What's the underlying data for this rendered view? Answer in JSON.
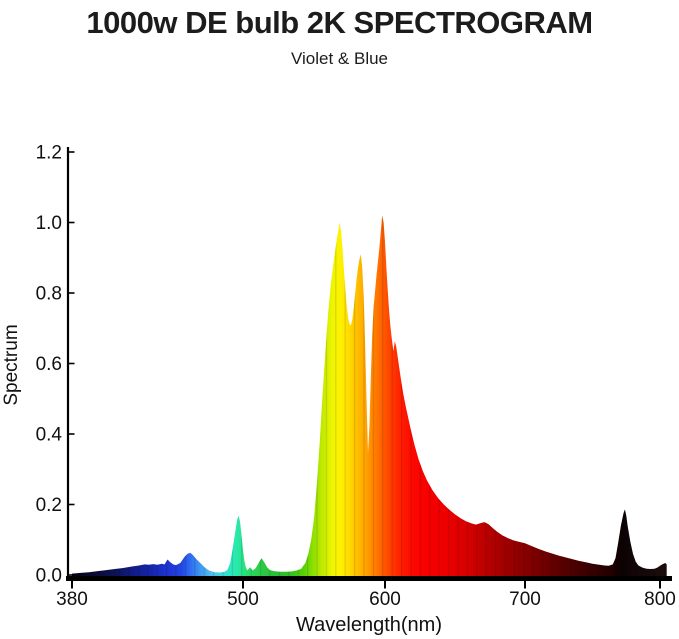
{
  "header": {
    "title": "1000w DE bulb 2K SPECTROGRAM",
    "subtitle": "Violet & Blue"
  },
  "chart_data": {
    "type": "area",
    "title": "1000w DE bulb 2K SPECTROGRAM",
    "subtitle": "Violet & Blue",
    "xlabel": "Wavelength(nm)",
    "ylabel": "Spectrum",
    "xlim": [
      380,
      805
    ],
    "ylim": [
      0,
      1.2
    ],
    "grid": false,
    "legend": "none",
    "axis_color": "#000000",
    "tick_label_color": "#111111",
    "x_tick_values": [
      380,
      500,
      600,
      700,
      800
    ],
    "x_tick_labels": [
      "380",
      "500",
      "600",
      "700",
      "800"
    ],
    "y_tick_values": [
      0.0,
      0.2,
      0.4,
      0.6,
      0.8,
      1.0,
      1.2
    ],
    "y_tick_labels": [
      "0.0",
      "0.2",
      "0.4",
      "0.6",
      "0.8",
      "1.0",
      "1.2"
    ],
    "points": [
      [
        380,
        0.004
      ],
      [
        386,
        0.006
      ],
      [
        392,
        0.008
      ],
      [
        398,
        0.011
      ],
      [
        404,
        0.014
      ],
      [
        410,
        0.017
      ],
      [
        416,
        0.02
      ],
      [
        422,
        0.024
      ],
      [
        427,
        0.027
      ],
      [
        431,
        0.03
      ],
      [
        434,
        0.029
      ],
      [
        437,
        0.031
      ],
      [
        440,
        0.029
      ],
      [
        443,
        0.032
      ],
      [
        445,
        0.03
      ],
      [
        447,
        0.044
      ],
      [
        449,
        0.036
      ],
      [
        451,
        0.03
      ],
      [
        453,
        0.028
      ],
      [
        456,
        0.034
      ],
      [
        459,
        0.052
      ],
      [
        461,
        0.06
      ],
      [
        463,
        0.063
      ],
      [
        465,
        0.056
      ],
      [
        467,
        0.046
      ],
      [
        470,
        0.034
      ],
      [
        473,
        0.022
      ],
      [
        476,
        0.013
      ],
      [
        480,
        0.008
      ],
      [
        484,
        0.007
      ],
      [
        487,
        0.009
      ],
      [
        489,
        0.014
      ],
      [
        491,
        0.034
      ],
      [
        493,
        0.08
      ],
      [
        495,
        0.135
      ],
      [
        496,
        0.158
      ],
      [
        497,
        0.168
      ],
      [
        498,
        0.15
      ],
      [
        499,
        0.11
      ],
      [
        500,
        0.07
      ],
      [
        501,
        0.04
      ],
      [
        502,
        0.022
      ],
      [
        503,
        0.013
      ],
      [
        504,
        0.018
      ],
      [
        505,
        0.022
      ],
      [
        506,
        0.017
      ],
      [
        507,
        0.013
      ],
      [
        509,
        0.02
      ],
      [
        511,
        0.034
      ],
      [
        513,
        0.048
      ],
      [
        515,
        0.036
      ],
      [
        517,
        0.022
      ],
      [
        519,
        0.014
      ],
      [
        522,
        0.011
      ],
      [
        526,
        0.009
      ],
      [
        530,
        0.009
      ],
      [
        534,
        0.01
      ],
      [
        538,
        0.013
      ],
      [
        541,
        0.018
      ],
      [
        544,
        0.035
      ],
      [
        546,
        0.06
      ],
      [
        548,
        0.1
      ],
      [
        550,
        0.16
      ],
      [
        552,
        0.255
      ],
      [
        554,
        0.375
      ],
      [
        556,
        0.51
      ],
      [
        558,
        0.635
      ],
      [
        560,
        0.745
      ],
      [
        562,
        0.83
      ],
      [
        564,
        0.895
      ],
      [
        566,
        0.95
      ],
      [
        568,
        1.0
      ],
      [
        569,
        0.975
      ],
      [
        570,
        0.93
      ],
      [
        571,
        0.87
      ],
      [
        572,
        0.815
      ],
      [
        573,
        0.765
      ],
      [
        574,
        0.73
      ],
      [
        575,
        0.712
      ],
      [
        576,
        0.708
      ],
      [
        577,
        0.725
      ],
      [
        578,
        0.76
      ],
      [
        579,
        0.8
      ],
      [
        580,
        0.84
      ],
      [
        581,
        0.872
      ],
      [
        582,
        0.895
      ],
      [
        583,
        0.91
      ],
      [
        584,
        0.868
      ],
      [
        585,
        0.79
      ],
      [
        586,
        0.655
      ],
      [
        587,
        0.5
      ],
      [
        588,
        0.345
      ],
      [
        589,
        0.42
      ],
      [
        590,
        0.56
      ],
      [
        591,
        0.68
      ],
      [
        592,
        0.76
      ],
      [
        594,
        0.85
      ],
      [
        596,
        0.925
      ],
      [
        598,
        1.02
      ],
      [
        599,
        1.0
      ],
      [
        600,
        0.945
      ],
      [
        601,
        0.87
      ],
      [
        602,
        0.805
      ],
      [
        603,
        0.745
      ],
      [
        604,
        0.7
      ],
      [
        605,
        0.665
      ],
      [
        606,
        0.635
      ],
      [
        607,
        0.663
      ],
      [
        608,
        0.648
      ],
      [
        609,
        0.62
      ],
      [
        611,
        0.565
      ],
      [
        613,
        0.515
      ],
      [
        615,
        0.475
      ],
      [
        618,
        0.42
      ],
      [
        621,
        0.37
      ],
      [
        624,
        0.328
      ],
      [
        627,
        0.295
      ],
      [
        630,
        0.268
      ],
      [
        634,
        0.24
      ],
      [
        638,
        0.218
      ],
      [
        642,
        0.2
      ],
      [
        646,
        0.185
      ],
      [
        650,
        0.172
      ],
      [
        654,
        0.161
      ],
      [
        658,
        0.152
      ],
      [
        662,
        0.146
      ],
      [
        665,
        0.143
      ],
      [
        668,
        0.147
      ],
      [
        671,
        0.15
      ],
      [
        674,
        0.144
      ],
      [
        677,
        0.133
      ],
      [
        680,
        0.123
      ],
      [
        684,
        0.112
      ],
      [
        688,
        0.104
      ],
      [
        692,
        0.098
      ],
      [
        696,
        0.094
      ],
      [
        700,
        0.09
      ],
      [
        705,
        0.082
      ],
      [
        710,
        0.074
      ],
      [
        715,
        0.067
      ],
      [
        720,
        0.061
      ],
      [
        725,
        0.055
      ],
      [
        730,
        0.05
      ],
      [
        735,
        0.045
      ],
      [
        740,
        0.04
      ],
      [
        745,
        0.036
      ],
      [
        750,
        0.032
      ],
      [
        755,
        0.029
      ],
      [
        759,
        0.027
      ],
      [
        762,
        0.026
      ],
      [
        765,
        0.03
      ],
      [
        767,
        0.048
      ],
      [
        769,
        0.09
      ],
      [
        771,
        0.14
      ],
      [
        773,
        0.175
      ],
      [
        774,
        0.186
      ],
      [
        775,
        0.168
      ],
      [
        776,
        0.14
      ],
      [
        778,
        0.095
      ],
      [
        780,
        0.06
      ],
      [
        782,
        0.038
      ],
      [
        784,
        0.027
      ],
      [
        787,
        0.021
      ],
      [
        790,
        0.018
      ],
      [
        793,
        0.017
      ],
      [
        796,
        0.018
      ],
      [
        798,
        0.021
      ],
      [
        800,
        0.026
      ],
      [
        802,
        0.031
      ],
      [
        804,
        0.034
      ],
      [
        805,
        0.03
      ]
    ],
    "spectrum_color_stops": [
      [
        380,
        "#05050e"
      ],
      [
        395,
        "#0a0a33"
      ],
      [
        410,
        "#0d1254"
      ],
      [
        425,
        "#121d8f"
      ],
      [
        435,
        "#1625a8"
      ],
      [
        443,
        "#1c2fc4"
      ],
      [
        450,
        "#2138d8"
      ],
      [
        457,
        "#2247e2"
      ],
      [
        463,
        "#2f6cf0"
      ],
      [
        470,
        "#3f97f2"
      ],
      [
        478,
        "#52bdf0"
      ],
      [
        485,
        "#3cd8dc"
      ],
      [
        492,
        "#2ce8bc"
      ],
      [
        497,
        "#28e8a2"
      ],
      [
        503,
        "#2ade6e"
      ],
      [
        509,
        "#2cd153"
      ],
      [
        515,
        "#2cc743"
      ],
      [
        525,
        "#2bbd35"
      ],
      [
        535,
        "#35c31e"
      ],
      [
        543,
        "#5ad104"
      ],
      [
        549,
        "#8ade00"
      ],
      [
        556,
        "#c2ea00"
      ],
      [
        563,
        "#eef500"
      ],
      [
        569,
        "#fff100"
      ],
      [
        575,
        "#ffd900"
      ],
      [
        581,
        "#ffbc00"
      ],
      [
        587,
        "#ffa000"
      ],
      [
        593,
        "#ff7d00"
      ],
      [
        599,
        "#ff5a00"
      ],
      [
        605,
        "#ff3a00"
      ],
      [
        612,
        "#ff1c00"
      ],
      [
        620,
        "#fc0800"
      ],
      [
        630,
        "#f80000"
      ],
      [
        645,
        "#ec0000"
      ],
      [
        660,
        "#d40000"
      ],
      [
        675,
        "#b40000"
      ],
      [
        690,
        "#980000"
      ],
      [
        705,
        "#800000"
      ],
      [
        720,
        "#650000"
      ],
      [
        735,
        "#4d0000"
      ],
      [
        750,
        "#360000"
      ],
      [
        762,
        "#250000"
      ],
      [
        772,
        "#0c0203"
      ],
      [
        780,
        "#120607"
      ],
      [
        790,
        "#160808"
      ],
      [
        800,
        "#1b0c0c"
      ],
      [
        805,
        "#1c0d0d"
      ]
    ]
  }
}
